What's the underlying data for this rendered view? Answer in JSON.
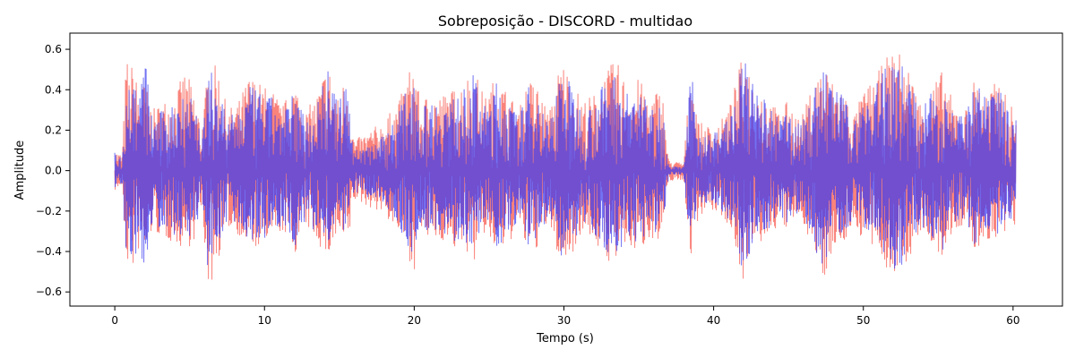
{
  "chart_data": {
    "type": "line",
    "title": "Sobreposição - DISCORD - multidao",
    "xlabel": "Tempo (s)",
    "ylabel": "Amplitude",
    "xlim": [
      -3.0,
      63.3
    ],
    "ylim": [
      -0.67,
      0.68
    ],
    "xticks": [
      0,
      10,
      20,
      30,
      40,
      50,
      60
    ],
    "xtick_labels": [
      "0",
      "10",
      "20",
      "30",
      "40",
      "50",
      "60"
    ],
    "yticks": [
      -0.6,
      -0.4,
      -0.2,
      0.0,
      0.2,
      0.4,
      0.6
    ],
    "ytick_labels": [
      "−0.6",
      "−0.4",
      "−0.2",
      "0.0",
      "0.2",
      "0.4",
      "0.6"
    ],
    "grid": false,
    "legend": "none",
    "series": [
      {
        "color": "#f8766d",
        "opacity": 0.9,
        "envelope": {
          "t": [
            0.0,
            0.5,
            0.8,
            0.9,
            1.2,
            1.6,
            2.0,
            2.5,
            3.2,
            4.0,
            4.7,
            5.3,
            5.8,
            6.3,
            7.0,
            7.5,
            8.3,
            9.0,
            10.0,
            10.6,
            11.2,
            12.0,
            12.8,
            13.5,
            14.2,
            14.9,
            15.5,
            16.0,
            17.0,
            18.0,
            19.0,
            20.0,
            20.4,
            21.0,
            21.8,
            22.5,
            23.3,
            24.0,
            24.7,
            25.5,
            26.2,
            27.0,
            27.6,
            28.3,
            29.0,
            29.8,
            30.4,
            31.2,
            32.0,
            32.8,
            33.5,
            34.3,
            35.0,
            35.8,
            36.3,
            36.6,
            37.0,
            38.0,
            38.5,
            39.0,
            39.8,
            40.5,
            41.2,
            42.0,
            42.7,
            43.5,
            44.3,
            45.0,
            45.8,
            46.5,
            47.3,
            47.9,
            48.6,
            49.4,
            50.0,
            50.7,
            51.5,
            52.3,
            53.0,
            53.8,
            54.5,
            55.3,
            56.0,
            56.8,
            57.5,
            58.3,
            59.0,
            59.6,
            60.2
          ],
          "upper": [
            0.1,
            0.08,
            0.62,
            0.45,
            0.55,
            0.4,
            0.45,
            0.3,
            0.35,
            0.38,
            0.5,
            0.4,
            0.22,
            0.55,
            0.5,
            0.3,
            0.35,
            0.48,
            0.42,
            0.4,
            0.32,
            0.45,
            0.3,
            0.38,
            0.55,
            0.36,
            0.5,
            0.15,
            0.2,
            0.25,
            0.35,
            0.58,
            0.32,
            0.4,
            0.38,
            0.4,
            0.45,
            0.52,
            0.36,
            0.48,
            0.4,
            0.3,
            0.46,
            0.42,
            0.28,
            0.56,
            0.48,
            0.35,
            0.38,
            0.5,
            0.55,
            0.42,
            0.46,
            0.35,
            0.42,
            0.38,
            0.05,
            0.04,
            0.55,
            0.24,
            0.22,
            0.25,
            0.35,
            0.6,
            0.45,
            0.38,
            0.3,
            0.35,
            0.25,
            0.4,
            0.55,
            0.45,
            0.42,
            0.28,
            0.4,
            0.45,
            0.56,
            0.6,
            0.52,
            0.35,
            0.42,
            0.5,
            0.34,
            0.3,
            0.48,
            0.38,
            0.46,
            0.36,
            0.3
          ],
          "lower": [
            -0.1,
            -0.08,
            -0.55,
            -0.42,
            -0.5,
            -0.4,
            -0.45,
            -0.3,
            -0.34,
            -0.36,
            -0.4,
            -0.35,
            -0.2,
            -0.61,
            -0.42,
            -0.28,
            -0.32,
            -0.4,
            -0.38,
            -0.36,
            -0.3,
            -0.42,
            -0.28,
            -0.35,
            -0.45,
            -0.34,
            -0.42,
            -0.15,
            -0.18,
            -0.22,
            -0.32,
            -0.5,
            -0.3,
            -0.36,
            -0.34,
            -0.4,
            -0.38,
            -0.46,
            -0.32,
            -0.42,
            -0.38,
            -0.28,
            -0.42,
            -0.38,
            -0.26,
            -0.48,
            -0.44,
            -0.3,
            -0.35,
            -0.45,
            -0.46,
            -0.38,
            -0.42,
            -0.32,
            -0.38,
            -0.34,
            -0.05,
            -0.05,
            -0.45,
            -0.22,
            -0.2,
            -0.22,
            -0.3,
            -0.55,
            -0.4,
            -0.34,
            -0.28,
            -0.3,
            -0.22,
            -0.36,
            -0.56,
            -0.4,
            -0.38,
            -0.26,
            -0.36,
            -0.4,
            -0.48,
            -0.55,
            -0.46,
            -0.3,
            -0.38,
            -0.45,
            -0.3,
            -0.28,
            -0.42,
            -0.34,
            -0.4,
            -0.32,
            -0.28
          ]
        }
      },
      {
        "color": "#3b3bf0",
        "opacity": 0.72,
        "envelope": {
          "t": [
            0.0,
            0.5,
            0.8,
            0.9,
            1.2,
            1.6,
            2.0,
            2.5,
            3.2,
            4.0,
            4.7,
            5.3,
            5.8,
            6.3,
            7.0,
            7.5,
            8.3,
            9.0,
            10.0,
            10.6,
            11.2,
            12.0,
            12.8,
            13.5,
            14.2,
            14.9,
            15.5,
            16.0,
            17.0,
            18.0,
            19.0,
            20.0,
            20.4,
            21.0,
            21.8,
            22.5,
            23.3,
            24.0,
            24.7,
            25.5,
            26.2,
            27.0,
            27.6,
            28.3,
            29.0,
            29.8,
            30.4,
            31.2,
            32.0,
            32.8,
            33.5,
            34.3,
            35.0,
            35.8,
            36.3,
            36.6,
            37.0,
            38.0,
            38.5,
            39.0,
            39.8,
            40.5,
            41.2,
            42.0,
            42.7,
            43.5,
            44.3,
            45.0,
            45.8,
            46.5,
            47.3,
            47.9,
            48.6,
            49.4,
            50.0,
            50.7,
            51.5,
            52.3,
            53.0,
            53.8,
            54.5,
            55.3,
            56.0,
            56.8,
            57.5,
            58.3,
            59.0,
            59.6,
            60.2
          ],
          "upper": [
            0.09,
            0.06,
            0.58,
            0.42,
            0.5,
            0.36,
            0.58,
            0.26,
            0.3,
            0.34,
            0.44,
            0.36,
            0.18,
            0.5,
            0.44,
            0.26,
            0.3,
            0.42,
            0.38,
            0.36,
            0.28,
            0.4,
            0.26,
            0.34,
            0.52,
            0.32,
            0.46,
            0.1,
            0.14,
            0.18,
            0.3,
            0.52,
            0.28,
            0.36,
            0.34,
            0.36,
            0.4,
            0.48,
            0.32,
            0.44,
            0.36,
            0.26,
            0.42,
            0.38,
            0.22,
            0.52,
            0.44,
            0.3,
            0.34,
            0.46,
            0.5,
            0.38,
            0.42,
            0.3,
            0.36,
            0.34,
            0.02,
            0.02,
            0.5,
            0.2,
            0.18,
            0.22,
            0.3,
            0.56,
            0.42,
            0.34,
            0.26,
            0.3,
            0.22,
            0.36,
            0.52,
            0.42,
            0.38,
            0.24,
            0.36,
            0.42,
            0.52,
            0.58,
            0.48,
            0.3,
            0.38,
            0.46,
            0.3,
            0.26,
            0.44,
            0.34,
            0.42,
            0.32,
            0.26
          ],
          "lower": [
            -0.09,
            -0.06,
            -0.57,
            -0.4,
            -0.48,
            -0.36,
            -0.54,
            -0.26,
            -0.3,
            -0.32,
            -0.36,
            -0.32,
            -0.16,
            -0.56,
            -0.38,
            -0.24,
            -0.28,
            -0.36,
            -0.34,
            -0.32,
            -0.26,
            -0.38,
            -0.24,
            -0.32,
            -0.42,
            -0.3,
            -0.38,
            -0.1,
            -0.14,
            -0.16,
            -0.28,
            -0.46,
            -0.26,
            -0.32,
            -0.3,
            -0.36,
            -0.34,
            -0.42,
            -0.28,
            -0.38,
            -0.34,
            -0.24,
            -0.38,
            -0.34,
            -0.22,
            -0.44,
            -0.4,
            -0.26,
            -0.32,
            -0.42,
            -0.42,
            -0.34,
            -0.38,
            -0.28,
            -0.34,
            -0.3,
            -0.02,
            -0.02,
            -0.42,
            -0.18,
            -0.16,
            -0.2,
            -0.26,
            -0.52,
            -0.36,
            -0.3,
            -0.24,
            -0.26,
            -0.2,
            -0.32,
            -0.55,
            -0.36,
            -0.34,
            -0.22,
            -0.32,
            -0.36,
            -0.44,
            -0.5,
            -0.42,
            -0.26,
            -0.34,
            -0.42,
            -0.26,
            -0.24,
            -0.38,
            -0.3,
            -0.36,
            -0.28,
            -0.26
          ]
        }
      }
    ]
  }
}
